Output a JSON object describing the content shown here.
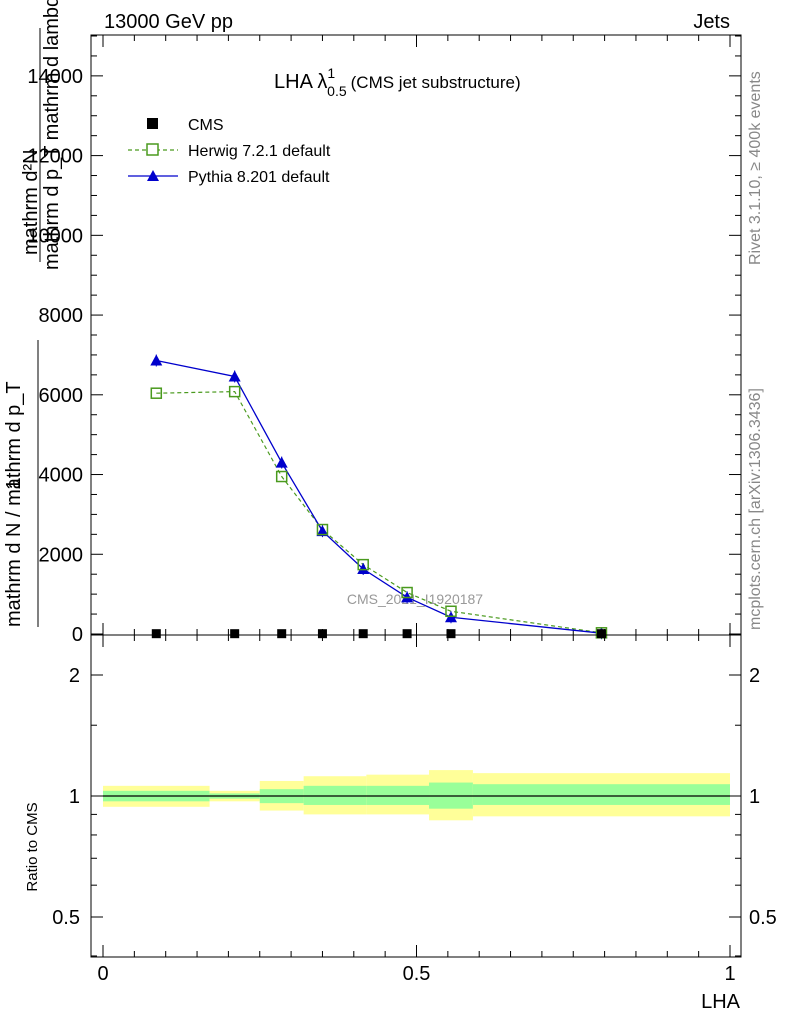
{
  "header": {
    "left": "13000 GeV pp",
    "right": "Jets"
  },
  "side_labels": {
    "rivet": "Rivet 3.1.10, ≥ 400k events",
    "mcplots": "mcplots.cern.ch [arXiv:1306.3436]"
  },
  "watermark": "CMS_2021_I1920187",
  "colors": {
    "data": "#000000",
    "herwig": "#4a9a1e",
    "pythia": "#0000cc",
    "band_outer": "#ffff99",
    "band_inner": "#99ff99"
  },
  "chart_data": [
    {
      "type": "line",
      "title_main": "LHA λ",
      "title_sup": "1",
      "title_sub": "0.5",
      "title_extra": "(CMS jet substructure)",
      "ylabel_numerator": "mathrm d²N",
      "ylabel_denominator": "mathrm d p_T mathrm d lambda",
      "ylabel_prefix_num": "1",
      "ylabel_prefix_den": "mathrm d N / mathrm d p_T",
      "xlim": [
        0,
        1
      ],
      "ylim": [
        0,
        15000
      ],
      "yticks": [
        "2000",
        "4000",
        "6000",
        "8000",
        "10000",
        "12000",
        "14000"
      ],
      "y_zero_label": "0",
      "legend": {
        "placement": "top-left",
        "entries": [
          "CMS",
          "Herwig 7.2.1 default",
          "Pythia 8.201 default"
        ]
      },
      "series": [
        {
          "name": "CMS",
          "x": [
            0.085,
            0.21,
            0.285,
            0.35,
            0.415,
            0.485,
            0.555,
            0.795
          ],
          "y": [
            8,
            8,
            8,
            8,
            8,
            8,
            8,
            8
          ]
        },
        {
          "name": "Herwig 7.2.1 default",
          "x": [
            0.085,
            0.21,
            0.285,
            0.35,
            0.415,
            0.485,
            0.555,
            0.795
          ],
          "y": [
            6040,
            6080,
            3950,
            2620,
            1740,
            1040,
            570,
            30
          ]
        },
        {
          "name": "Pythia 8.201 default",
          "x": [
            0.085,
            0.21,
            0.285,
            0.35,
            0.415,
            0.485,
            0.555,
            0.795
          ],
          "y": [
            6860,
            6460,
            4300,
            2580,
            1630,
            920,
            420,
            20
          ]
        }
      ]
    },
    {
      "type": "area",
      "ylabel": "Ratio to CMS",
      "xlabel": "LHA",
      "xlim": [
        0,
        1
      ],
      "ylim": [
        0.4,
        2.3
      ],
      "log_y": true,
      "yticks": [
        "0.5",
        "1",
        "2"
      ],
      "xticks": [
        "0",
        "0.5",
        "1"
      ],
      "bins": [
        0,
        0.17,
        0.25,
        0.32,
        0.42,
        0.52,
        0.59,
        1.0
      ],
      "outer_band": {
        "low": [
          0.94,
          0.97,
          0.92,
          0.9,
          0.9,
          0.87,
          0.89
        ],
        "high": [
          1.06,
          1.03,
          1.09,
          1.12,
          1.13,
          1.16,
          1.14
        ]
      },
      "inner_band": {
        "low": [
          0.97,
          0.985,
          0.96,
          0.95,
          0.95,
          0.93,
          0.95
        ],
        "high": [
          1.03,
          1.015,
          1.04,
          1.06,
          1.06,
          1.08,
          1.07
        ]
      }
    }
  ]
}
